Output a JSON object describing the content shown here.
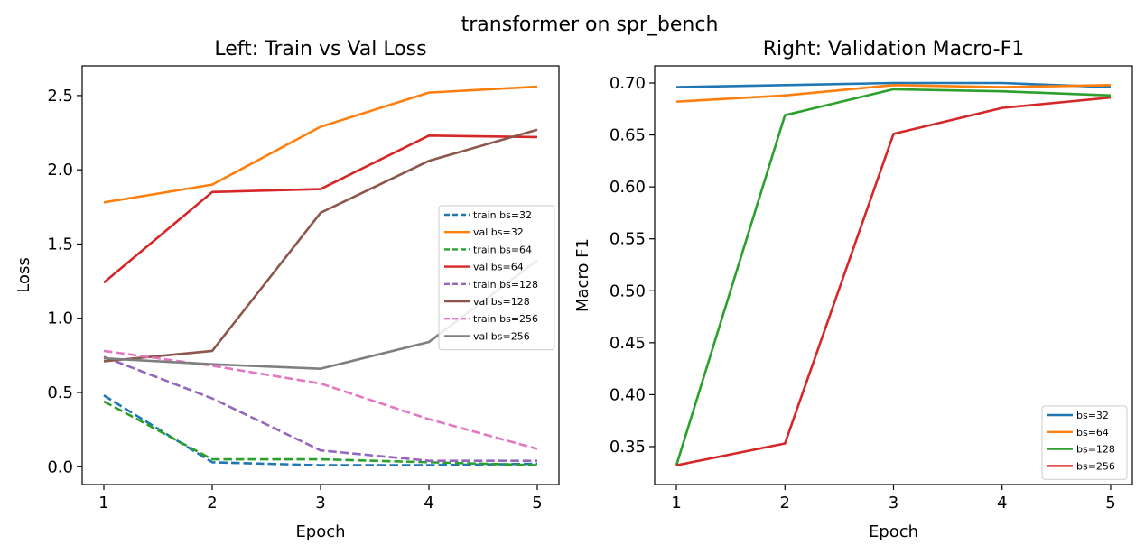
{
  "suptitle": "transformer on spr_bench",
  "chart_data": [
    {
      "type": "line",
      "title": "Left: Train vs Val Loss",
      "xlabel": "Epoch",
      "ylabel": "Loss",
      "xlim": [
        0.8,
        5.2
      ],
      "ylim": [
        -0.12,
        2.7
      ],
      "xticks": [
        1,
        2,
        3,
        4,
        5
      ],
      "yticks": [
        "0.0",
        "0.5",
        "1.0",
        "1.5",
        "2.0",
        "2.5"
      ],
      "grid": false,
      "legend": "center-right",
      "x": [
        1,
        2,
        3,
        4,
        5
      ],
      "series": [
        {
          "name": "train bs=32",
          "color": "#1f77b4",
          "style": "dashed",
          "values": [
            0.48,
            0.03,
            0.01,
            0.01,
            0.02
          ]
        },
        {
          "name": "val bs=32",
          "color": "#ff7f0e",
          "style": "solid",
          "values": [
            1.78,
            1.9,
            2.29,
            2.52,
            2.56
          ]
        },
        {
          "name": "train bs=64",
          "color": "#2ca02c",
          "style": "dashed",
          "values": [
            0.44,
            0.05,
            0.05,
            0.03,
            0.01
          ]
        },
        {
          "name": "val bs=64",
          "color": "#d62728",
          "style": "solid",
          "values": [
            1.24,
            1.85,
            1.87,
            2.23,
            2.22
          ]
        },
        {
          "name": "train bs=128",
          "color": "#9467bd",
          "style": "dashed",
          "values": [
            0.74,
            0.46,
            0.11,
            0.04,
            0.04
          ]
        },
        {
          "name": "val bs=128",
          "color": "#8c564b",
          "style": "solid",
          "values": [
            0.71,
            0.78,
            1.71,
            2.06,
            2.27
          ]
        },
        {
          "name": "train bs=256",
          "color": "#e377c2",
          "style": "dashed",
          "values": [
            0.78,
            0.68,
            0.56,
            0.32,
            0.12
          ]
        },
        {
          "name": "val bs=256",
          "color": "#7f7f7f",
          "style": "solid",
          "values": [
            0.73,
            0.69,
            0.66,
            0.84,
            1.39
          ]
        }
      ]
    },
    {
      "type": "line",
      "title": "Right: Validation Macro-F1",
      "xlabel": "Epoch",
      "ylabel": "Macro F1",
      "xlim": [
        0.8,
        5.2
      ],
      "ylim": [
        0.3135,
        0.7165
      ],
      "xticks": [
        1,
        2,
        3,
        4,
        5
      ],
      "yticks": [
        "0.35",
        "0.40",
        "0.45",
        "0.50",
        "0.55",
        "0.60",
        "0.65",
        "0.70"
      ],
      "grid": false,
      "legend": "lower-right",
      "x": [
        1,
        2,
        3,
        4,
        5
      ],
      "series": [
        {
          "name": "bs=32",
          "color": "#1f77b4",
          "style": "solid",
          "values": [
            0.696,
            0.698,
            0.7,
            0.7,
            0.696
          ]
        },
        {
          "name": "bs=64",
          "color": "#ff7f0e",
          "style": "solid",
          "values": [
            0.682,
            0.688,
            0.698,
            0.696,
            0.698
          ]
        },
        {
          "name": "bs=128",
          "color": "#2ca02c",
          "style": "solid",
          "values": [
            0.332,
            0.669,
            0.694,
            0.692,
            0.688
          ]
        },
        {
          "name": "bs=256",
          "color": "#d62728",
          "style": "solid",
          "values": [
            0.332,
            0.353,
            0.651,
            0.676,
            0.686
          ]
        }
      ]
    }
  ]
}
